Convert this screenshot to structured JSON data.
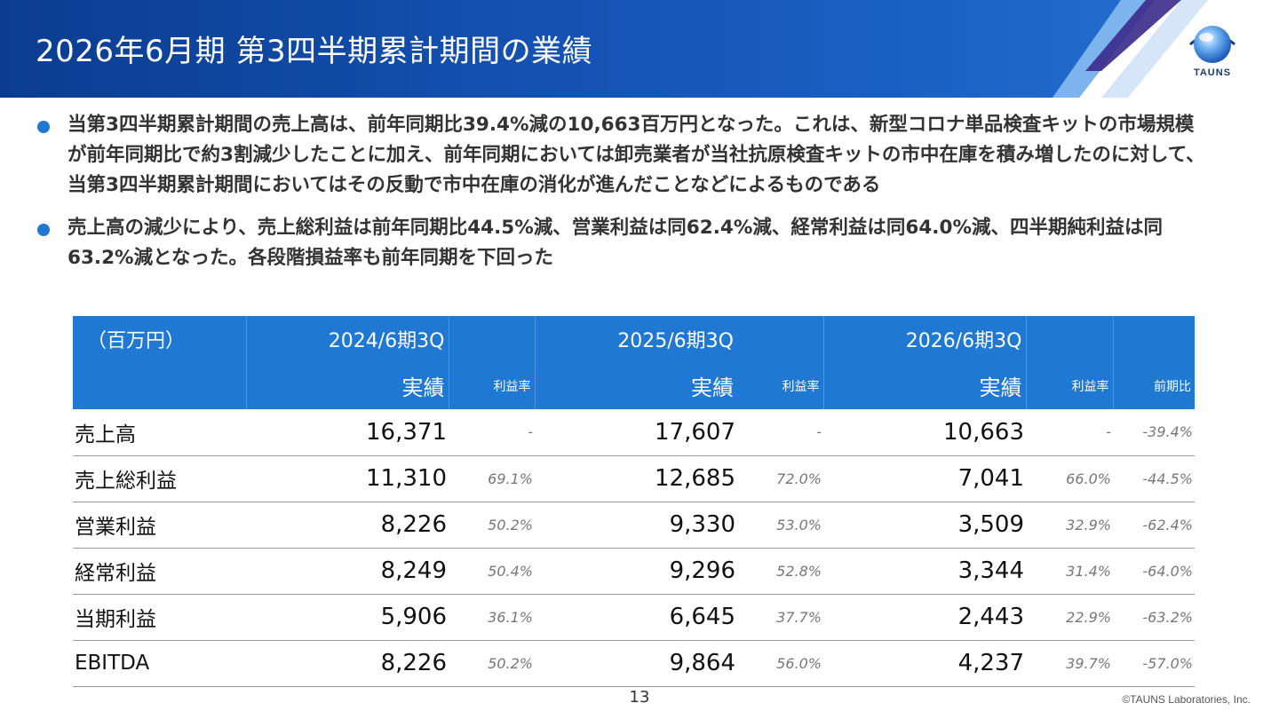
{
  "header": {
    "title": "2026年6月期 第3四半期累計期間の業績",
    "logo_text": "TAUNS",
    "colors": {
      "band": "#1553b3",
      "accent_light": "#6fa8e8",
      "accent_dark": "#3a2a8a"
    }
  },
  "bullets": [
    {
      "text": "当第3四半期累計期間の売上高は、前年同期比39.4%減の10,663百万円となった。これは、新型コロナ単品検査キットの市場規模が前年同期比で約3割減少したことに加え、前年同期においては卸売業者が当社抗原検査キットの市中在庫を積み増したのに対して、当第3四半期累計期間においてはその反動で市中在庫の消化が進んだことなどによるものである"
    },
    {
      "text": "売上高の減少により、売上総利益は前年同期比44.5%減、営業利益は同62.4%減、経常利益は同64.0%減、四半期純利益は同63.2%減となった。各段階損益率も前年同期を下回った"
    }
  ],
  "table": {
    "unit": "（百万円）",
    "years": [
      "2024/6期3Q",
      "2025/6期3Q",
      "2026/6期3Q"
    ],
    "sub_actual": "実績",
    "sub_rate": "利益率",
    "sub_yoy": "前期比",
    "header_color": "#1f78d1",
    "rows": [
      {
        "label": "売上高",
        "v1": "16,371",
        "r1": "-",
        "v2": "17,607",
        "r2": "-",
        "v3": "10,663",
        "r3": "-",
        "yoy": "-39.4%"
      },
      {
        "label": "売上総利益",
        "v1": "11,310",
        "r1": "69.1%",
        "v2": "12,685",
        "r2": "72.0%",
        "v3": "7,041",
        "r3": "66.0%",
        "yoy": "-44.5%"
      },
      {
        "label": "営業利益",
        "v1": "8,226",
        "r1": "50.2%",
        "v2": "9,330",
        "r2": "53.0%",
        "v3": "3,509",
        "r3": "32.9%",
        "yoy": "-62.4%"
      },
      {
        "label": "経常利益",
        "v1": "8,249",
        "r1": "50.4%",
        "v2": "9,296",
        "r2": "52.8%",
        "v3": "3,344",
        "r3": "31.4%",
        "yoy": "-64.0%"
      },
      {
        "label": "当期利益",
        "v1": "5,906",
        "r1": "36.1%",
        "v2": "6,645",
        "r2": "37.7%",
        "v3": "2,443",
        "r3": "22.9%",
        "yoy": "-63.2%"
      },
      {
        "label": "EBITDA",
        "v1": "8,226",
        "r1": "50.2%",
        "v2": "9,864",
        "r2": "56.0%",
        "v3": "4,237",
        "r3": "39.7%",
        "yoy": "-57.0%"
      }
    ]
  },
  "footer": {
    "page_number": "13",
    "copyright": "©TAUNS Laboratories, Inc."
  }
}
